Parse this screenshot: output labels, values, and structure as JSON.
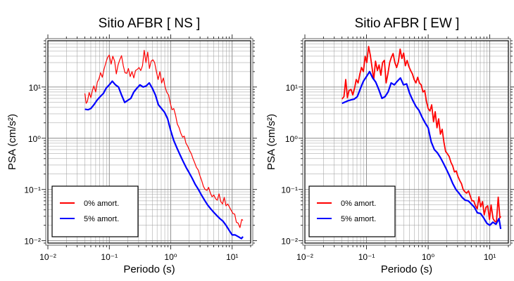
{
  "chart_data": [
    {
      "type": "line",
      "title": "Sitio AFBR [ NS ]",
      "xlabel": "Periodo (s)",
      "ylabel": "PSA (cm/s²)",
      "xscale": "log",
      "yscale": "log",
      "xlim": [
        0.01,
        20
      ],
      "ylim": [
        0.009,
        80
      ],
      "grid": true,
      "legend_position": "bottom-left",
      "x_ticks": [
        "10⁻²",
        "10⁻¹",
        "10⁰",
        "10¹"
      ],
      "y_ticks": [
        "10⁻²",
        "10⁻¹",
        "10⁰",
        "10¹"
      ],
      "series": [
        {
          "name": "0% amort.",
          "color": "#ff0000",
          "x": [
            0.04,
            0.042,
            0.044,
            0.047,
            0.05,
            0.053,
            0.056,
            0.06,
            0.064,
            0.068,
            0.072,
            0.077,
            0.082,
            0.088,
            0.094,
            0.1,
            0.107,
            0.114,
            0.122,
            0.13,
            0.139,
            0.148,
            0.158,
            0.169,
            0.18,
            0.192,
            0.205,
            0.219,
            0.234,
            0.25,
            0.267,
            0.285,
            0.304,
            0.325,
            0.347,
            0.37,
            0.395,
            0.422,
            0.45,
            0.48,
            0.513,
            0.547,
            0.584,
            0.624,
            0.666,
            0.711,
            0.759,
            0.81,
            0.865,
            0.923,
            0.985,
            1.05,
            1.12,
            1.2,
            1.28,
            1.37,
            1.46,
            1.56,
            1.66,
            1.77,
            1.89,
            2.02,
            2.16,
            2.3,
            2.46,
            2.62,
            2.8,
            2.99,
            3.19,
            3.4,
            3.63,
            3.88,
            4.14,
            4.42,
            4.71,
            5.03,
            5.37,
            5.73,
            6.12,
            6.53,
            6.97,
            7.44,
            7.94,
            8.48,
            9.05,
            9.66,
            10.3,
            11.0,
            11.7,
            12.5,
            13.4,
            14.3,
            15.0
          ],
          "y": [
            7.5,
            4.8,
            5.2,
            7.8,
            6.2,
            8.5,
            10.5,
            8.0,
            12.5,
            14.5,
            19.0,
            15.5,
            22.0,
            30.0,
            38.0,
            42.0,
            28.0,
            40.0,
            32.0,
            18.0,
            27.0,
            34.0,
            41.0,
            26.0,
            19.0,
            18.5,
            23.0,
            16.0,
            20.0,
            15.0,
            21.0,
            22.0,
            24.0,
            21.0,
            26.0,
            52.0,
            30.0,
            48.0,
            23.0,
            32.0,
            34.0,
            30.0,
            20.0,
            14.0,
            20.0,
            12.0,
            15.0,
            10.0,
            7.8,
            7.0,
            4.8,
            3.6,
            3.8,
            2.8,
            1.9,
            1.6,
            1.25,
            1.05,
            1.1,
            0.8,
            0.7,
            0.58,
            0.5,
            0.4,
            0.33,
            0.27,
            0.24,
            0.185,
            0.15,
            0.115,
            0.1,
            0.096,
            0.11,
            0.085,
            0.072,
            0.078,
            0.066,
            0.062,
            0.082,
            0.058,
            0.052,
            0.07,
            0.048,
            0.052,
            0.045,
            0.039,
            0.034,
            0.033,
            0.023,
            0.022,
            0.018,
            0.026,
            0.025
          ]
        },
        {
          "name": "5% amort.",
          "color": "#0000ff",
          "x": [
            0.04,
            0.045,
            0.05,
            0.056,
            0.063,
            0.071,
            0.08,
            0.089,
            0.1,
            0.112,
            0.126,
            0.141,
            0.158,
            0.178,
            0.2,
            0.224,
            0.251,
            0.282,
            0.316,
            0.355,
            0.398,
            0.447,
            0.501,
            0.562,
            0.631,
            0.708,
            0.794,
            0.891,
            1.0,
            1.12,
            1.26,
            1.41,
            1.58,
            1.78,
            2.0,
            2.24,
            2.51,
            2.82,
            3.16,
            3.55,
            3.98,
            4.47,
            5.01,
            5.62,
            6.31,
            7.08,
            7.94,
            8.91,
            10.0,
            11.2,
            12.6,
            14.1,
            15.0
          ],
          "y": [
            3.7,
            3.6,
            3.8,
            4.5,
            5.5,
            6.5,
            7.5,
            9.5,
            11.0,
            13.0,
            11.0,
            10.0,
            7.0,
            5.0,
            5.5,
            6.0,
            8.0,
            9.5,
            11.0,
            10.0,
            10.5,
            12.0,
            9.5,
            7.0,
            4.5,
            3.8,
            3.2,
            2.4,
            1.4,
            0.9,
            0.65,
            0.48,
            0.36,
            0.27,
            0.21,
            0.165,
            0.125,
            0.1,
            0.078,
            0.062,
            0.05,
            0.042,
            0.036,
            0.031,
            0.027,
            0.024,
            0.02,
            0.016,
            0.013,
            0.013,
            0.012,
            0.011,
            0.012
          ]
        }
      ]
    },
    {
      "type": "line",
      "title": "Sitio AFBR [ EW ]",
      "xlabel": "Periodo (s)",
      "ylabel": "PSA (cm/s²)",
      "xscale": "log",
      "yscale": "log",
      "xlim": [
        0.01,
        20
      ],
      "ylim": [
        0.009,
        80
      ],
      "grid": true,
      "legend_position": "bottom-left",
      "x_ticks": [
        "10⁻²",
        "10⁻¹",
        "10⁰",
        "10¹"
      ],
      "y_ticks": [
        "10⁻²",
        "10⁻¹",
        "10⁰",
        "10¹"
      ],
      "series": [
        {
          "name": "0% amort.",
          "color": "#ff0000",
          "x": [
            0.04,
            0.043,
            0.046,
            0.049,
            0.052,
            0.056,
            0.06,
            0.064,
            0.068,
            0.073,
            0.078,
            0.083,
            0.089,
            0.095,
            0.101,
            0.108,
            0.115,
            0.123,
            0.131,
            0.14,
            0.15,
            0.16,
            0.171,
            0.182,
            0.195,
            0.208,
            0.222,
            0.237,
            0.253,
            0.27,
            0.288,
            0.308,
            0.329,
            0.351,
            0.375,
            0.4,
            0.427,
            0.456,
            0.487,
            0.52,
            0.555,
            0.593,
            0.633,
            0.676,
            0.722,
            0.771,
            0.823,
            0.879,
            0.939,
            1.0,
            1.07,
            1.14,
            1.22,
            1.3,
            1.39,
            1.48,
            1.58,
            1.69,
            1.8,
            1.92,
            2.05,
            2.19,
            2.34,
            2.5,
            2.67,
            2.85,
            3.04,
            3.25,
            3.47,
            3.7,
            3.95,
            4.22,
            4.51,
            4.81,
            5.14,
            5.48,
            5.85,
            6.25,
            6.67,
            7.12,
            7.61,
            8.12,
            8.67,
            9.26,
            9.88,
            10.5,
            11.3,
            12.0,
            12.8,
            13.7,
            14.6,
            15.0
          ],
          "y": [
            5.8,
            6.5,
            14.0,
            6.2,
            8.5,
            9.0,
            7.0,
            9.5,
            14.0,
            12.0,
            18.0,
            24.0,
            20.0,
            40.0,
            30.0,
            62.0,
            42.0,
            24.0,
            14.0,
            32.0,
            21.0,
            27.0,
            17.0,
            30.0,
            33.0,
            12.0,
            18.0,
            30.0,
            38.0,
            45.0,
            30.0,
            24.0,
            31.0,
            55.0,
            36.0,
            46.0,
            26.0,
            33.0,
            25.0,
            21.0,
            18.0,
            14.0,
            12.0,
            15.5,
            12.0,
            11.0,
            8.0,
            8.5,
            5.2,
            3.8,
            3.4,
            4.5,
            2.1,
            3.3,
            1.6,
            2.4,
            1.2,
            1.5,
            0.85,
            0.55,
            0.5,
            0.44,
            0.34,
            0.29,
            0.22,
            0.23,
            0.18,
            0.15,
            0.13,
            0.1,
            0.09,
            0.085,
            0.094,
            0.075,
            0.06,
            0.06,
            0.048,
            0.042,
            0.072,
            0.046,
            0.058,
            0.032,
            0.045,
            0.048,
            0.026,
            0.05,
            0.027,
            0.024,
            0.023,
            0.071,
            0.028,
            0.03
          ]
        },
        {
          "name": "5% amort.",
          "color": "#0000ff",
          "x": [
            0.04,
            0.045,
            0.05,
            0.056,
            0.063,
            0.071,
            0.08,
            0.089,
            0.1,
            0.112,
            0.126,
            0.141,
            0.158,
            0.178,
            0.2,
            0.224,
            0.251,
            0.282,
            0.316,
            0.355,
            0.398,
            0.447,
            0.501,
            0.562,
            0.631,
            0.708,
            0.794,
            0.891,
            1.0,
            1.12,
            1.26,
            1.41,
            1.58,
            1.78,
            2.0,
            2.24,
            2.51,
            2.82,
            3.16,
            3.55,
            3.98,
            4.47,
            5.01,
            5.62,
            6.31,
            7.08,
            7.94,
            8.91,
            10.0,
            11.2,
            12.6,
            14.1,
            15.0
          ],
          "y": [
            4.8,
            5.1,
            5.4,
            5.6,
            5.8,
            6.5,
            9.5,
            13.0,
            16.0,
            20.0,
            15.0,
            12.5,
            9.0,
            6.0,
            6.5,
            8.0,
            12.0,
            11.0,
            13.0,
            15.0,
            11.0,
            11.5,
            7.5,
            5.5,
            4.2,
            3.5,
            2.6,
            2.0,
            1.6,
            0.85,
            0.6,
            0.52,
            0.42,
            0.32,
            0.24,
            0.18,
            0.13,
            0.1,
            0.085,
            0.07,
            0.062,
            0.06,
            0.052,
            0.045,
            0.035,
            0.034,
            0.028,
            0.022,
            0.02,
            0.023,
            0.021,
            0.027,
            0.017
          ]
        }
      ]
    }
  ]
}
